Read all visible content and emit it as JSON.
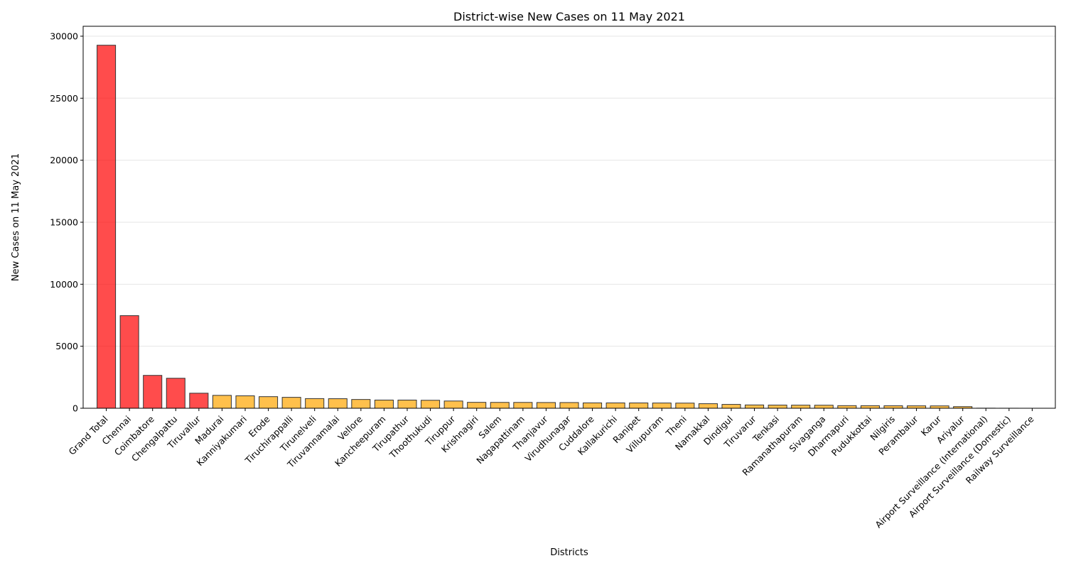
{
  "chart_data": {
    "type": "bar",
    "title": "District-wise New Cases on 11 May 2021",
    "xlabel": "Districts",
    "ylabel": "New Cases on 11 May 2021",
    "ylim": [
      0,
      30800
    ],
    "yticks": [
      0,
      5000,
      10000,
      15000,
      20000,
      25000,
      30000
    ],
    "grid": "y-only",
    "categories": [
      "Grand Total",
      "Chennai",
      "Coimbatore",
      "Chengalpattu",
      "Tiruvallur",
      "Madurai",
      "Kanniyakumari",
      "Erode",
      "Tiruchirappalli",
      "Tirunelveli",
      "Tiruvannamalai",
      "Vellore",
      "Kancheepuram",
      "Tirupathur",
      "Thoothukudi",
      "Tiruppur",
      "Krishnagiri",
      "Salem",
      "Nagapattinam",
      "Thanjavur",
      "Virudhunagar",
      "Cuddalore",
      "Kallakurichi",
      "Ranipet",
      "Villupuram",
      "Theni",
      "Namakkal",
      "Dindigul",
      "Tiruvarur",
      "Tenkasi",
      "Ramanathapuram",
      "Sivaganga",
      "Dharmapuri",
      "Pudukkottai",
      "Nilgiris",
      "Perambalur",
      "Karur",
      "Ariyalur",
      "Airport Surveillance (International)",
      "Airport Surveillance (Domestic)",
      "Railway Surveillance"
    ],
    "values": [
      29272,
      7466,
      2650,
      2419,
      1213,
      1039,
      1002,
      935,
      880,
      779,
      770,
      707,
      660,
      659,
      643,
      584,
      477,
      472,
      470,
      462,
      460,
      432,
      430,
      428,
      422,
      415,
      367,
      310,
      266,
      255,
      250,
      245,
      210,
      205,
      200,
      195,
      190,
      131,
      6,
      2,
      0
    ],
    "highlight_colors": {
      "top": "#ff0000",
      "rest": "#ffa500"
    },
    "highlight_top_n": 5
  }
}
